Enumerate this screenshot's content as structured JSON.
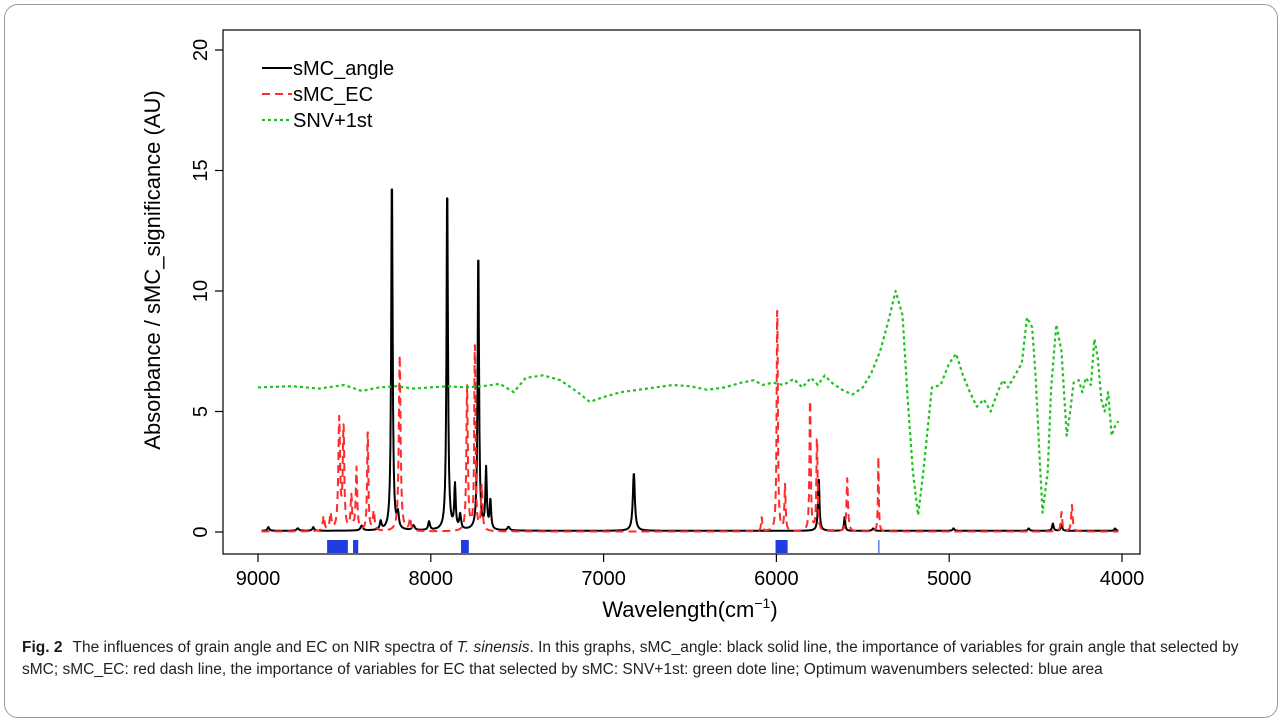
{
  "caption": {
    "label": "Fig. 2",
    "text_before": "The influences of grain angle and EC on NIR spectra of ",
    "species": "T. sinensis",
    "text_after": ". In this graphs, sMC_angle: black solid line, the importance of variables for grain angle that selected by sMC; sMC_EC: red dash line, the importance of variables for EC that selected by sMC: SNV+1st: green dote line; Optimum wavenumbers selected: blue area"
  },
  "chart_data": {
    "type": "line",
    "title": "",
    "xlabel": "Wavelength(cm",
    "xlabel_superscript": "−1",
    "xlabel_close": ")",
    "ylabel": "Absorbance / sMC_significance (AU)",
    "xlim": [
      9000,
      4000
    ],
    "ylim": [
      0,
      20
    ],
    "x_reversed": true,
    "x_ticks": [
      9000,
      8000,
      7000,
      6000,
      5000,
      4000
    ],
    "x_tick_labels": [
      "9000",
      "8000",
      "7000",
      "6000",
      "5000",
      "4000"
    ],
    "y_ticks": [
      0,
      5,
      10,
      15,
      20
    ],
    "y_tick_labels": [
      "0",
      "5",
      "10",
      "15",
      "20"
    ],
    "grid": false,
    "legend_position": "top-left",
    "colors": {
      "sMC_angle": "#000000",
      "sMC_EC": "#ff2a2a",
      "SNV+1st": "#22c022",
      "selected": "#1f3de0"
    },
    "series": [
      {
        "name": "sMC_angle",
        "style": "solid",
        "baseline": 0.05,
        "peaks": [
          [
            8940,
            0.15,
            6
          ],
          [
            8770,
            0.1,
            8
          ],
          [
            8680,
            0.15,
            6
          ],
          [
            8400,
            0.2,
            8
          ],
          [
            8290,
            0.35,
            6
          ],
          [
            8225,
            14.7,
            5
          ],
          [
            8190,
            0.6,
            6
          ],
          [
            8100,
            0.2,
            8
          ],
          [
            8010,
            0.35,
            6
          ],
          [
            7905,
            14.3,
            5
          ],
          [
            7860,
            1.8,
            5
          ],
          [
            7830,
            0.6,
            6
          ],
          [
            7725,
            11.6,
            5
          ],
          [
            7680,
            2.5,
            5
          ],
          [
            7655,
            1.2,
            5
          ],
          [
            7550,
            0.15,
            8
          ],
          [
            6825,
            2.4,
            7
          ],
          [
            5755,
            2.2,
            5
          ],
          [
            5605,
            0.6,
            4
          ],
          [
            5440,
            0.1,
            6
          ],
          [
            4975,
            0.1,
            6
          ],
          [
            4540,
            0.1,
            6
          ],
          [
            4400,
            0.3,
            5
          ],
          [
            4350,
            0.25,
            5
          ],
          [
            4040,
            0.1,
            5
          ]
        ]
      },
      {
        "name": "sMC_EC",
        "style": "dashed",
        "baseline": 0.02,
        "peaks": [
          [
            8620,
            0.6,
            6
          ],
          [
            8580,
            0.7,
            6
          ],
          [
            8530,
            4.6,
            6
          ],
          [
            8505,
            4.3,
            5
          ],
          [
            8460,
            1.4,
            5
          ],
          [
            8430,
            2.6,
            5
          ],
          [
            8365,
            4.3,
            4
          ],
          [
            8330,
            0.8,
            6
          ],
          [
            8180,
            7.3,
            6
          ],
          [
            8120,
            0.5,
            6
          ],
          [
            7790,
            6.0,
            5
          ],
          [
            7745,
            8.1,
            4
          ],
          [
            7705,
            1.9,
            5
          ],
          [
            6085,
            0.6,
            4
          ],
          [
            5995,
            9.7,
            4
          ],
          [
            5950,
            1.9,
            4
          ],
          [
            5805,
            5.7,
            4
          ],
          [
            5765,
            4.0,
            4
          ],
          [
            5590,
            2.2,
            5
          ],
          [
            5410,
            3.1,
            3
          ],
          [
            4350,
            0.8,
            5
          ],
          [
            4290,
            1.1,
            5
          ]
        ]
      },
      {
        "name": "SNV+1st",
        "style": "dotted",
        "x": [
          9000,
          8800,
          8650,
          8500,
          8400,
          8300,
          8200,
          8100,
          8000,
          7900,
          7800,
          7700,
          7600,
          7520,
          7450,
          7350,
          7250,
          7150,
          7080,
          7000,
          6900,
          6800,
          6700,
          6600,
          6500,
          6400,
          6300,
          6200,
          6130,
          6080,
          6020,
          5960,
          5900,
          5850,
          5800,
          5760,
          5720,
          5680,
          5620,
          5560,
          5500,
          5450,
          5400,
          5350,
          5310,
          5270,
          5240,
          5210,
          5180,
          5150,
          5100,
          5050,
          5000,
          4960,
          4920,
          4880,
          4840,
          4800,
          4760,
          4720,
          4690,
          4660,
          4620,
          4580,
          4550,
          4520,
          4500,
          4480,
          4460,
          4430,
          4410,
          4380,
          4350,
          4320,
          4300,
          4280,
          4250,
          4230,
          4210,
          4180,
          4160,
          4140,
          4120,
          4100,
          4080,
          4060,
          4040,
          4020
        ],
        "y": [
          6.0,
          6.05,
          5.95,
          6.1,
          5.85,
          6.0,
          6.05,
          5.95,
          6.0,
          6.05,
          6.0,
          6.05,
          6.15,
          5.8,
          6.4,
          6.5,
          6.3,
          5.8,
          5.4,
          5.6,
          5.8,
          5.9,
          6.0,
          6.1,
          6.05,
          5.9,
          6.0,
          6.2,
          6.3,
          6.1,
          6.2,
          6.1,
          6.35,
          6.0,
          6.4,
          6.1,
          6.5,
          6.2,
          5.9,
          5.7,
          6.0,
          6.6,
          7.5,
          8.8,
          10.0,
          9.0,
          5.5,
          2.5,
          0.7,
          2.5,
          6.0,
          6.1,
          7.0,
          7.4,
          6.5,
          5.8,
          5.2,
          5.5,
          5.0,
          5.8,
          6.3,
          6.0,
          6.5,
          7.0,
          8.9,
          8.5,
          6.5,
          3.5,
          0.8,
          2.5,
          6.0,
          8.6,
          7.5,
          4.0,
          5.0,
          6.2,
          6.3,
          5.8,
          6.4,
          6.1,
          8.0,
          7.2,
          5.5,
          5.0,
          5.8,
          4.0,
          4.4,
          4.6
        ]
      }
    ],
    "selected_regions": [
      [
        8600,
        8480
      ],
      [
        8450,
        8420
      ],
      [
        7825,
        7780
      ],
      [
        6005,
        5935
      ],
      [
        5410,
        5404
      ]
    ]
  }
}
